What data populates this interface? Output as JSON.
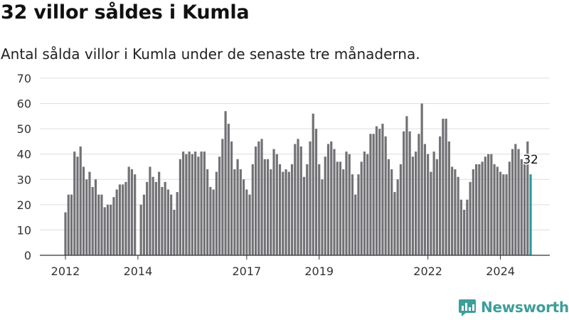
{
  "header": {
    "title": "32 villor såldes i Kumla",
    "subtitle": "Antal sålda villor i Kumla under de senaste tre månaderna."
  },
  "brand": {
    "name": "Newsworthy",
    "logo_icon": "bar-chart-logo-icon",
    "color": "#3e9e9a"
  },
  "colors": {
    "bar": "#727276",
    "highlight": "#2a9d96",
    "grid": "#dddddd"
  },
  "chart_data": {
    "type": "bar",
    "title": "32 villor såldes i Kumla",
    "subtitle": "Antal sålda villor i Kumla under de senaste tre månaderna.",
    "xlabel": "",
    "ylabel": "",
    "ylim": [
      0,
      70
    ],
    "yticks": [
      "0",
      "10",
      "20",
      "30",
      "40",
      "50",
      "60",
      "70"
    ],
    "xticks": [
      {
        "label": "2012",
        "index": 0
      },
      {
        "label": "2014",
        "index": 24
      },
      {
        "label": "2017",
        "index": 60
      },
      {
        "label": "2019",
        "index": 84
      },
      {
        "label": "2022",
        "index": 120
      },
      {
        "label": "2024",
        "index": 144
      }
    ],
    "grid": true,
    "legend": "none",
    "highlight": {
      "index": 154,
      "label": "32"
    },
    "values": [
      17,
      24,
      24,
      41,
      39,
      43,
      35,
      30,
      33,
      27,
      30,
      24,
      24,
      19,
      20,
      20,
      23,
      26,
      28,
      28,
      29,
      35,
      34,
      32,
      null,
      20,
      24,
      29,
      35,
      31,
      29,
      33,
      27,
      29,
      26,
      24,
      18,
      25,
      38,
      41,
      40,
      41,
      40,
      41,
      39,
      41,
      41,
      34,
      27,
      26,
      33,
      39,
      46,
      57,
      52,
      45,
      34,
      38,
      34,
      30,
      26,
      24,
      36,
      43,
      45,
      46,
      38,
      38,
      34,
      42,
      40,
      36,
      33,
      34,
      33,
      36,
      44,
      46,
      43,
      31,
      36,
      45,
      56,
      50,
      36,
      30,
      39,
      44,
      45,
      42,
      37,
      37,
      34,
      41,
      40,
      32,
      24,
      32,
      37,
      41,
      40,
      48,
      48,
      51,
      50,
      52,
      47,
      38,
      34,
      25,
      30,
      36,
      49,
      55,
      49,
      39,
      41,
      48,
      60,
      44,
      40,
      33,
      41,
      38,
      47,
      54,
      54,
      45,
      35,
      34,
      31,
      22,
      18,
      22,
      29,
      34,
      36,
      36,
      37,
      39,
      40,
      40,
      36,
      35,
      33,
      32,
      32,
      37,
      42,
      44,
      42,
      38,
      36,
      45,
      32
    ]
  }
}
